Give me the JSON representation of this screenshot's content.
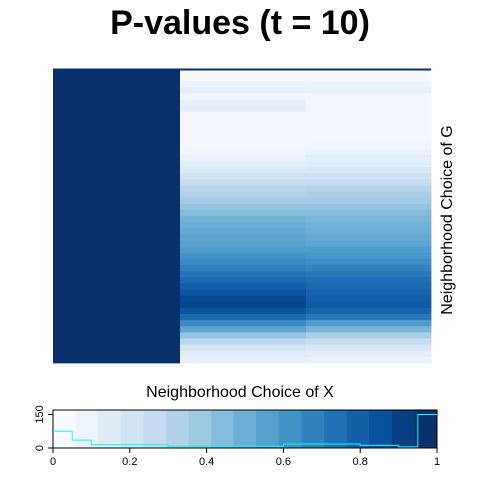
{
  "chart_data": {
    "type": "heatmap",
    "title": "P-values (t = 10)",
    "xlabel": "Neighborhood Choice of X",
    "ylabel": "Neighborhood Choice of G",
    "columns": 3,
    "rows": 48,
    "values": [
      [
        1.0,
        0.02,
        0.02
      ],
      [
        1.0,
        0.02,
        0.02
      ],
      [
        1.0,
        0.06,
        0.05
      ],
      [
        1.0,
        0.09,
        0.08
      ],
      [
        1.0,
        0.03,
        0.03
      ],
      [
        1.0,
        0.08,
        0.03
      ],
      [
        1.0,
        0.1,
        0.03
      ],
      [
        1.0,
        0.03,
        0.03
      ],
      [
        1.0,
        0.03,
        0.03
      ],
      [
        1.0,
        0.03,
        0.03
      ],
      [
        1.0,
        0.03,
        0.03
      ],
      [
        1.0,
        0.03,
        0.03
      ],
      [
        1.0,
        0.03,
        0.04
      ],
      [
        1.0,
        0.04,
        0.06
      ],
      [
        1.0,
        0.07,
        0.1
      ],
      [
        1.0,
        0.1,
        0.12
      ],
      [
        1.0,
        0.14,
        0.16
      ],
      [
        1.0,
        0.2,
        0.2
      ],
      [
        1.0,
        0.24,
        0.24
      ],
      [
        1.0,
        0.28,
        0.3
      ],
      [
        1.0,
        0.32,
        0.34
      ],
      [
        1.0,
        0.36,
        0.36
      ],
      [
        1.0,
        0.4,
        0.4
      ],
      [
        1.0,
        0.44,
        0.44
      ],
      [
        1.0,
        0.48,
        0.46
      ],
      [
        1.0,
        0.5,
        0.48
      ],
      [
        1.0,
        0.52,
        0.5
      ],
      [
        1.0,
        0.54,
        0.52
      ],
      [
        1.0,
        0.56,
        0.54
      ],
      [
        1.0,
        0.58,
        0.58
      ],
      [
        1.0,
        0.62,
        0.6
      ],
      [
        1.0,
        0.66,
        0.64
      ],
      [
        1.0,
        0.7,
        0.68
      ],
      [
        1.0,
        0.74,
        0.72
      ],
      [
        1.0,
        0.78,
        0.76
      ],
      [
        1.0,
        0.82,
        0.78
      ],
      [
        1.0,
        0.86,
        0.8
      ],
      [
        1.0,
        0.9,
        0.82
      ],
      [
        1.0,
        0.92,
        0.84
      ],
      [
        1.0,
        0.86,
        0.8
      ],
      [
        1.0,
        0.78,
        0.72
      ],
      [
        1.0,
        0.66,
        0.58
      ],
      [
        1.0,
        0.54,
        0.46
      ],
      [
        1.0,
        0.4,
        0.34
      ],
      [
        1.0,
        0.28,
        0.24
      ],
      [
        1.0,
        0.18,
        0.16
      ],
      [
        1.0,
        0.12,
        0.1
      ],
      [
        1.0,
        0.08,
        0.06
      ]
    ],
    "color_key": {
      "range": [
        0,
        1
      ],
      "x_ticks": [
        "0",
        "0.2",
        "0.4",
        "0.6",
        "0.8",
        "1"
      ],
      "x_tick_values": [
        0,
        0.2,
        0.4,
        0.6,
        0.8,
        1
      ],
      "count_ticks": [
        "0",
        "150"
      ],
      "count_tick_values": [
        0,
        150
      ],
      "count_max": 170,
      "colors": [
        "#f7fbff",
        "#ebf3fb",
        "#dfebf7",
        "#d2e3f3",
        "#c6dbef",
        "#b2d2e8",
        "#9ecae1",
        "#84bcdb",
        "#6baed6",
        "#56a0ce",
        "#4292c6",
        "#3282be",
        "#2171b5",
        "#1461a8",
        "#08519c",
        "#083f80",
        "#08306b"
      ],
      "histogram_color": "#00ffff",
      "histogram": [
        {
          "x0": 0.0,
          "x1": 0.05,
          "count": 75
        },
        {
          "x0": 0.05,
          "x1": 0.1,
          "count": 35
        },
        {
          "x0": 0.1,
          "x1": 0.3,
          "count": 15
        },
        {
          "x0": 0.3,
          "x1": 0.6,
          "count": 8
        },
        {
          "x0": 0.6,
          "x1": 0.8,
          "count": 18
        },
        {
          "x0": 0.8,
          "x1": 0.9,
          "count": 12
        },
        {
          "x0": 0.9,
          "x1": 0.95,
          "count": 5
        },
        {
          "x0": 0.95,
          "x1": 1.0,
          "count": 150
        }
      ]
    }
  }
}
